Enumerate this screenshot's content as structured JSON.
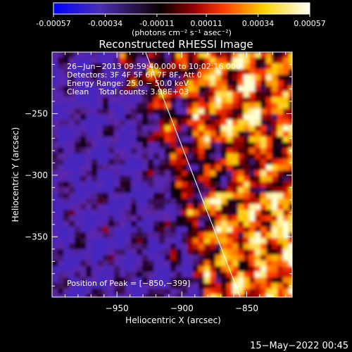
{
  "colorbar": {
    "ticks": [
      "-0.00057",
      "-0.00034",
      "-0.00011",
      "0.00011",
      "0.00034",
      "0.00057"
    ],
    "tick_values": [
      -0.00057,
      -0.00034,
      -0.00011,
      0.00011,
      0.00034,
      0.00057
    ],
    "range": [
      -0.00057,
      0.00057
    ],
    "units_label": "(photons cm⁻² s⁻¹ asec⁻²)",
    "colors": [
      "#0000ff",
      "#000000",
      "#ff2a00",
      "#ffd600",
      "#ffffff"
    ]
  },
  "chart_data": {
    "type": "heatmap",
    "title": "Reconstructed RHESSI Image",
    "xlabel": "Heliocentric X (arcsec)",
    "ylabel": "Heliocentric Y (arcsec)",
    "xlim": [
      -1000,
      -815
    ],
    "ylim": [
      -399,
      -200
    ],
    "xticks": [
      -950,
      -900,
      -850
    ],
    "xtick_labels": [
      "−950",
      "−900",
      "−850"
    ],
    "yticks": [
      -250,
      -300,
      -350
    ],
    "ytick_labels": [
      "−250",
      "−300",
      "−350"
    ],
    "limb_line": [
      [
        -928,
        -200
      ],
      [
        -855,
        -399
      ]
    ],
    "info_lines": [
      "26−Jun−2013 09:59:40.000 to 10:02:16.000",
      "Detectors: 3F 4F 5F 6F 7F 8F, Att 0",
      "Energy Range: 25.0 − 50.0 keV",
      "Clean    Total counts: 3.98E+03"
    ],
    "peak_label": "Position of Peak = [−850,−399]",
    "peak": [
      -850,
      -399
    ]
  },
  "footer": {
    "timestamp": "15−May−2022 00:45"
  }
}
